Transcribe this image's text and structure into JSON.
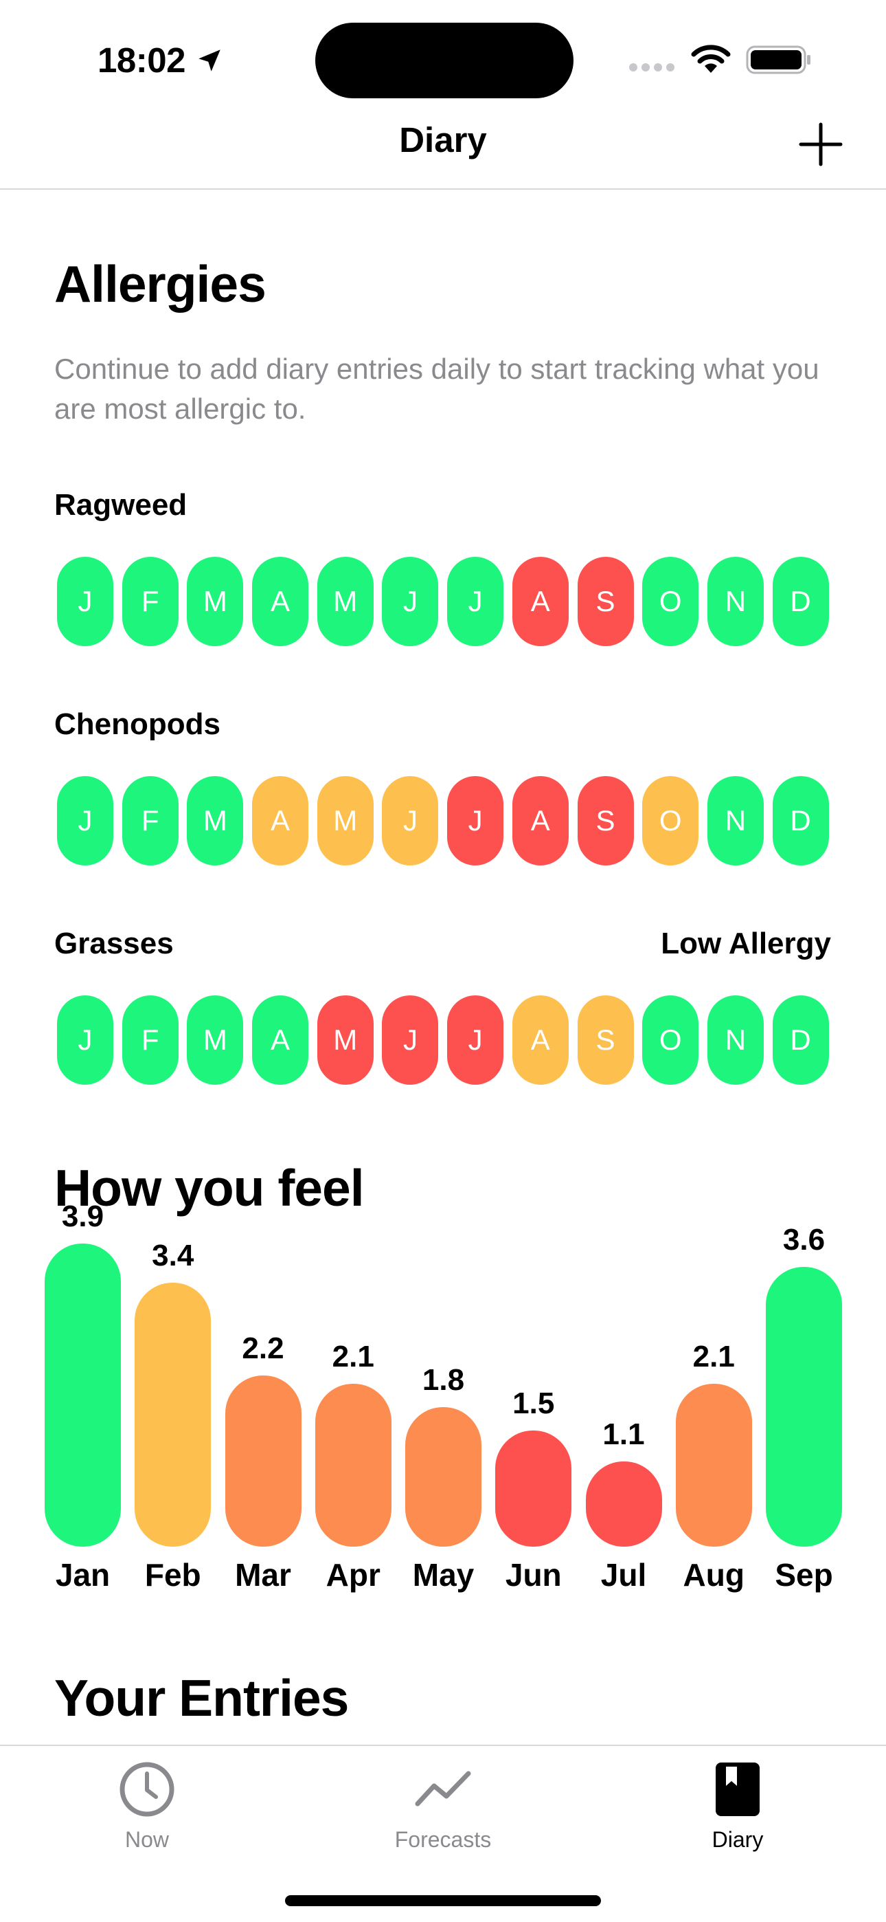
{
  "status_bar": {
    "time": "18:02"
  },
  "nav": {
    "title": "Diary"
  },
  "allergies": {
    "title": "Allergies",
    "description": "Continue to add diary entries daily to start tracking what you are most allergic to.",
    "colors": {
      "green": "#1EF57C",
      "yellow": "#FDC04E",
      "red": "#FD5150"
    },
    "rows": [
      {
        "name": "Ragweed",
        "level_label": "",
        "months": [
          {
            "letter": "J",
            "level": "green"
          },
          {
            "letter": "F",
            "level": "green"
          },
          {
            "letter": "M",
            "level": "green"
          },
          {
            "letter": "A",
            "level": "green"
          },
          {
            "letter": "M",
            "level": "green"
          },
          {
            "letter": "J",
            "level": "green"
          },
          {
            "letter": "J",
            "level": "green"
          },
          {
            "letter": "A",
            "level": "red"
          },
          {
            "letter": "S",
            "level": "red"
          },
          {
            "letter": "O",
            "level": "green"
          },
          {
            "letter": "N",
            "level": "green"
          },
          {
            "letter": "D",
            "level": "green"
          }
        ]
      },
      {
        "name": "Chenopods",
        "level_label": "",
        "months": [
          {
            "letter": "J",
            "level": "green"
          },
          {
            "letter": "F",
            "level": "green"
          },
          {
            "letter": "M",
            "level": "green"
          },
          {
            "letter": "A",
            "level": "yellow"
          },
          {
            "letter": "M",
            "level": "yellow"
          },
          {
            "letter": "J",
            "level": "yellow"
          },
          {
            "letter": "J",
            "level": "red"
          },
          {
            "letter": "A",
            "level": "red"
          },
          {
            "letter": "S",
            "level": "red"
          },
          {
            "letter": "O",
            "level": "yellow"
          },
          {
            "letter": "N",
            "level": "green"
          },
          {
            "letter": "D",
            "level": "green"
          }
        ]
      },
      {
        "name": "Grasses",
        "level_label": "Low Allergy",
        "months": [
          {
            "letter": "J",
            "level": "green"
          },
          {
            "letter": "F",
            "level": "green"
          },
          {
            "letter": "M",
            "level": "green"
          },
          {
            "letter": "A",
            "level": "green"
          },
          {
            "letter": "M",
            "level": "red"
          },
          {
            "letter": "J",
            "level": "red"
          },
          {
            "letter": "J",
            "level": "red"
          },
          {
            "letter": "A",
            "level": "yellow"
          },
          {
            "letter": "S",
            "level": "yellow"
          },
          {
            "letter": "O",
            "level": "green"
          },
          {
            "letter": "N",
            "level": "green"
          },
          {
            "letter": "D",
            "level": "green"
          }
        ]
      }
    ]
  },
  "feel": {
    "title": "How you feel",
    "chart_data": {
      "type": "bar",
      "categories": [
        "Jan",
        "Feb",
        "Mar",
        "Apr",
        "May",
        "Jun",
        "Jul",
        "Aug",
        "Sep"
      ],
      "values": [
        3.9,
        3.4,
        2.2,
        2.1,
        1.8,
        1.5,
        1.1,
        2.1,
        3.6
      ],
      "value_labels": [
        "3.9",
        "3.4",
        "2.2",
        "2.1",
        "1.8",
        "1.5",
        "1.1",
        "2.1",
        "3.6"
      ],
      "bar_colors": [
        "#1EF57C",
        "#FDC04E",
        "#FD8C50",
        "#FD8C50",
        "#FD8C50",
        "#FD5150",
        "#FD5150",
        "#FD8C50",
        "#1EF57C"
      ],
      "ylim": [
        0,
        4
      ]
    }
  },
  "entries": {
    "title": "Your Entries"
  },
  "tabs": [
    {
      "label": "Now",
      "icon": "clock-icon",
      "active": false
    },
    {
      "label": "Forecasts",
      "icon": "chart-line-icon",
      "active": false
    },
    {
      "label": "Diary",
      "icon": "book-icon",
      "active": true
    }
  ]
}
